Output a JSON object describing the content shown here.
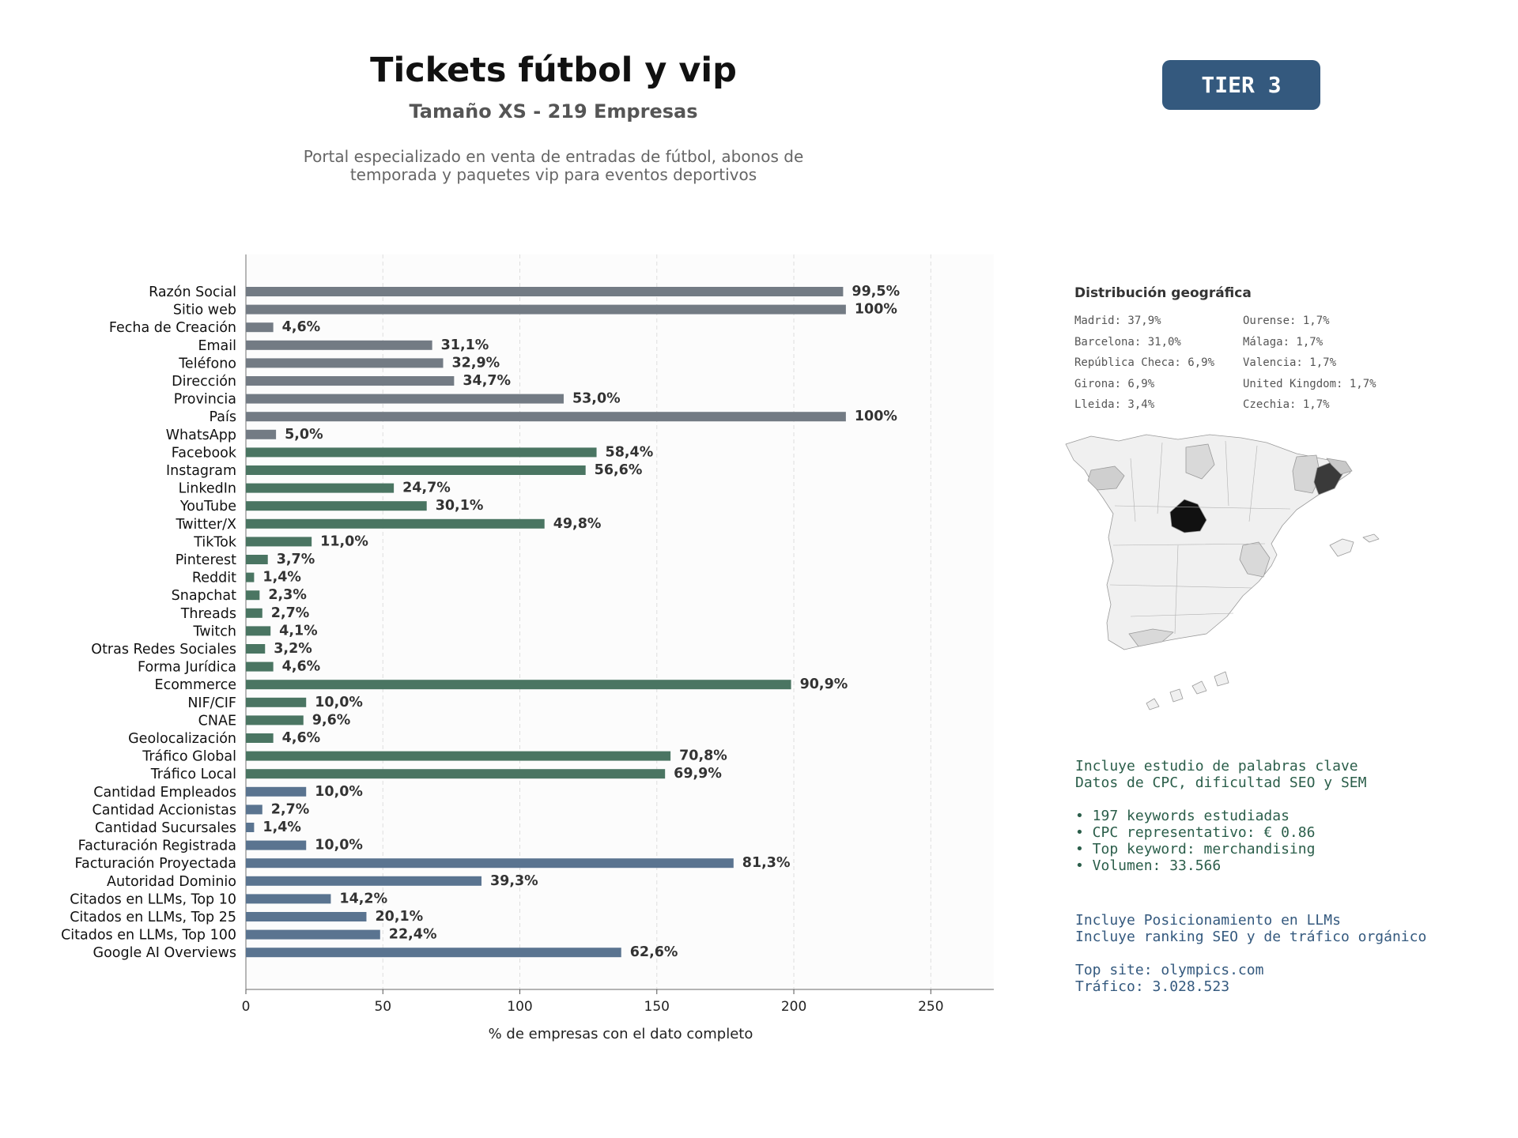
{
  "header": {
    "title": "Tickets fútbol y vip",
    "subtitle": "Tamaño XS - 219 Empresas",
    "description_lines": [
      "Portal especializado en venta de entradas de fútbol, abonos de",
      "temporada y paquetes vip para eventos deportivos"
    ],
    "tier_badge": "TIER 3"
  },
  "colors": {
    "gray": "#737b84",
    "green": "#4a7562",
    "blue": "#5a7490",
    "tier_badge": "#34597e",
    "map_region_default": "#f0f0f0",
    "map_madrid": "#111111",
    "map_barcelona": "#3a3a3a"
  },
  "chart_data": {
    "type": "bar",
    "orientation": "horizontal",
    "title": "",
    "xlabel": "% de empresas con el dato completo",
    "ylabel": "",
    "xlim": [
      0,
      273
    ],
    "xticks": [
      0,
      50,
      100,
      150,
      200,
      250
    ],
    "grid": "x-dashed",
    "categories": [
      "Razón Social",
      "Sitio web",
      "Fecha de Creación",
      "Email",
      "Teléfono",
      "Dirección",
      "Provincia",
      "País",
      "WhatsApp",
      "Facebook",
      "Instagram",
      "LinkedIn",
      "YouTube",
      "Twitter/X",
      "TikTok",
      "Pinterest",
      "Reddit",
      "Snapchat",
      "Threads",
      "Twitch",
      "Otras Redes Sociales",
      "Forma Jurídica",
      "Ecommerce",
      "NIF/CIF",
      "CNAE",
      "Geolocalización",
      "Tráfico Global",
      "Tráfico Local",
      "Cantidad Empleados",
      "Cantidad Accionistas",
      "Cantidad Sucursales",
      "Facturación Registrada",
      "Facturación Proyectada",
      "Autoridad Dominio",
      "Citados en LLMs, Top 10",
      "Citados en LLMs, Top 25",
      "Citados en LLMs, Top 100",
      "Google AI Overviews"
    ],
    "values": [
      218,
      219,
      10,
      68,
      72,
      76,
      116,
      219,
      11,
      128,
      124,
      54,
      66,
      109,
      24,
      8,
      3,
      5,
      6,
      9,
      7,
      10,
      199,
      22,
      21,
      10,
      155,
      153,
      22,
      6,
      3,
      22,
      178,
      86,
      31,
      44,
      49,
      137
    ],
    "labels": [
      "99,5%",
      "100%",
      "4,6%",
      "31,1%",
      "32,9%",
      "34,7%",
      "53,0%",
      "100%",
      "5,0%",
      "58,4%",
      "56,6%",
      "24,7%",
      "30,1%",
      "49,8%",
      "11,0%",
      "3,7%",
      "1,4%",
      "2,3%",
      "2,7%",
      "4,1%",
      "3,2%",
      "4,6%",
      "90,9%",
      "10,0%",
      "9,6%",
      "4,6%",
      "70,8%",
      "69,9%",
      "10,0%",
      "2,7%",
      "1,4%",
      "10,0%",
      "81,3%",
      "39,3%",
      "14,2%",
      "20,1%",
      "22,4%",
      "62,6%"
    ],
    "groups": [
      "gray",
      "gray",
      "gray",
      "gray",
      "gray",
      "gray",
      "gray",
      "gray",
      "gray",
      "green",
      "green",
      "green",
      "green",
      "green",
      "green",
      "green",
      "green",
      "green",
      "green",
      "green",
      "green",
      "green",
      "green",
      "green",
      "green",
      "green",
      "green",
      "green",
      "blue",
      "blue",
      "blue",
      "blue",
      "blue",
      "blue",
      "blue",
      "blue",
      "blue",
      "blue"
    ]
  },
  "geo": {
    "title": "Distribución geográfica",
    "col1": [
      "Madrid: 37,9%",
      "Barcelona: 31,0%",
      "República Checa: 6,9%",
      "Girona: 6,9%",
      "Lleida: 3,4%"
    ],
    "col2": [
      "Ourense: 1,7%",
      "Málaga: 1,7%",
      "Valencia: 1,7%",
      "United Kingdom: 1,7%",
      "Czechia: 1,7%"
    ]
  },
  "keywords": {
    "lines": [
      "Incluye estudio de palabras clave",
      "Datos de CPC, dificultad SEO y SEM",
      "",
      "• 197 keywords estudiadas",
      "• CPC representativo: € 0.86",
      "• Top keyword: merchandising",
      "• Volumen: 33.566"
    ]
  },
  "llm": {
    "lines": [
      "Incluye Posicionamiento en LLMs",
      "Incluye ranking SEO y de tráfico orgánico",
      "",
      "Top site: olympics.com",
      "Tráfico: 3.028.523"
    ]
  }
}
